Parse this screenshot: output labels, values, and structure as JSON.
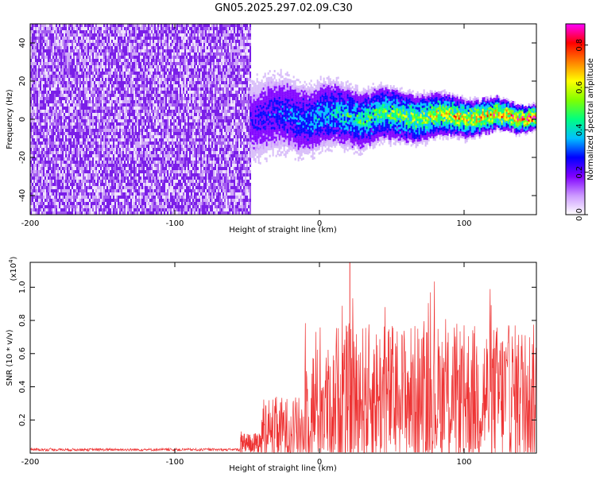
{
  "title": "GN05.2025.297.02.09.C30",
  "chart_data": [
    {
      "type": "heatmap",
      "xlabel": "Height of straight line (km)",
      "ylabel": "Frequency (Hz)",
      "xlim": [
        -200,
        150
      ],
      "ylim": [
        -50,
        50
      ],
      "xticks": [
        -200,
        -100,
        0,
        100
      ],
      "yticks": [
        -40,
        -20,
        0,
        20,
        40
      ],
      "colorbar": {
        "label": "Normalized spectral amplitude",
        "range": [
          0,
          0.9
        ],
        "ticks": [
          0.0,
          0.2,
          0.4,
          0.6,
          0.8
        ],
        "colormap": [
          "#ffffff",
          "#cc99ff",
          "#8000ff",
          "#0000ff",
          "#00c0ff",
          "#00ff80",
          "#80ff00",
          "#ffff00",
          "#ff8000",
          "#ff0000",
          "#ff00ff"
        ]
      },
      "description_values": {
        "noise_region_x": [
          -200,
          -48
        ],
        "signal_onset_x": -48,
        "signal_center_freq_hz": 2,
        "signal_halfwidth_hz_at_onset": 10,
        "signal_halfwidth_hz_at_end": 3,
        "peak_amplitude": 0.9
      }
    },
    {
      "type": "line",
      "xlabel": "Height of straight line (km)",
      "ylabel": "SNR (10 * v/v)",
      "yunit_multiplier": "(x10",
      "yunit_exponent": "4",
      "yunit_close": ")",
      "xlim": [
        -200,
        150
      ],
      "ylim": [
        0,
        1.15
      ],
      "xticks": [
        -200,
        -100,
        0,
        100
      ],
      "yticks": [
        0.2,
        0.4,
        0.6,
        0.8,
        1.0
      ],
      "series": [
        {
          "color": "#ee3333",
          "segments": [
            {
              "x": [
                -200,
                -55
              ],
              "baseline": 0.02,
              "spread": 0.01
            },
            {
              "x": [
                -55,
                -40
              ],
              "baseline": 0.05,
              "spread": 0.08
            },
            {
              "x": [
                -40,
                -10
              ],
              "baseline": 0.12,
              "spread": 0.25
            },
            {
              "x": [
                -10,
                10
              ],
              "baseline": 0.25,
              "spread": 0.45
            },
            {
              "x": [
                10,
                150
              ],
              "baseline": 0.3,
              "spread": 0.55
            }
          ],
          "peak": {
            "x": 21,
            "y": 1.15
          }
        }
      ]
    }
  ]
}
